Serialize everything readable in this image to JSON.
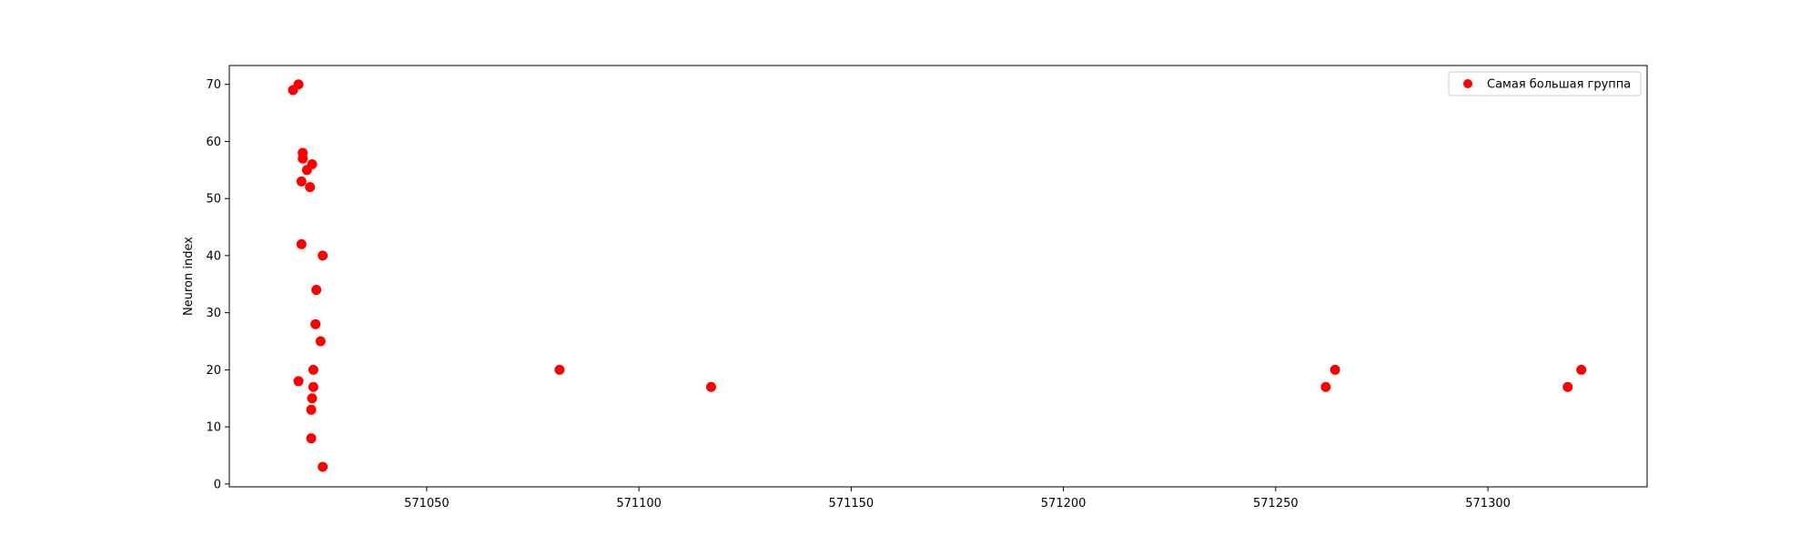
{
  "chart_data": {
    "type": "scatter",
    "title": "",
    "xlabel": "",
    "ylabel": "Neuron index",
    "xlim": [
      571003.5,
      571337.5
    ],
    "ylim": [
      -0.5,
      73.3
    ],
    "xticks": [
      571050,
      571100,
      571150,
      571200,
      571250,
      571300
    ],
    "yticks": [
      0,
      10,
      20,
      30,
      40,
      50,
      60,
      70
    ],
    "grid": false,
    "legend_position": "upper right",
    "series": [
      {
        "name": "Самая большая группа",
        "color": "#ff0000",
        "marker": "circle",
        "points": [
          {
            "x": 571018.5,
            "y": 69
          },
          {
            "x": 571019.8,
            "y": 70
          },
          {
            "x": 571020.8,
            "y": 58
          },
          {
            "x": 571020.8,
            "y": 57
          },
          {
            "x": 571021.8,
            "y": 55
          },
          {
            "x": 571023.0,
            "y": 56
          },
          {
            "x": 571020.5,
            "y": 53
          },
          {
            "x": 571022.5,
            "y": 52
          },
          {
            "x": 571020.5,
            "y": 42
          },
          {
            "x": 571025.5,
            "y": 40
          },
          {
            "x": 571024.0,
            "y": 34
          },
          {
            "x": 571023.8,
            "y": 28
          },
          {
            "x": 571025.0,
            "y": 25
          },
          {
            "x": 571023.3,
            "y": 20
          },
          {
            "x": 571019.8,
            "y": 18
          },
          {
            "x": 571023.3,
            "y": 17
          },
          {
            "x": 571023.0,
            "y": 15
          },
          {
            "x": 571022.8,
            "y": 13
          },
          {
            "x": 571022.8,
            "y": 8
          },
          {
            "x": 571025.5,
            "y": 3
          },
          {
            "x": 571081.3,
            "y": 20
          },
          {
            "x": 571117.0,
            "y": 17
          },
          {
            "x": 571261.8,
            "y": 17
          },
          {
            "x": 571264.0,
            "y": 20
          },
          {
            "x": 571318.8,
            "y": 17
          },
          {
            "x": 571322.0,
            "y": 20
          }
        ]
      }
    ]
  }
}
